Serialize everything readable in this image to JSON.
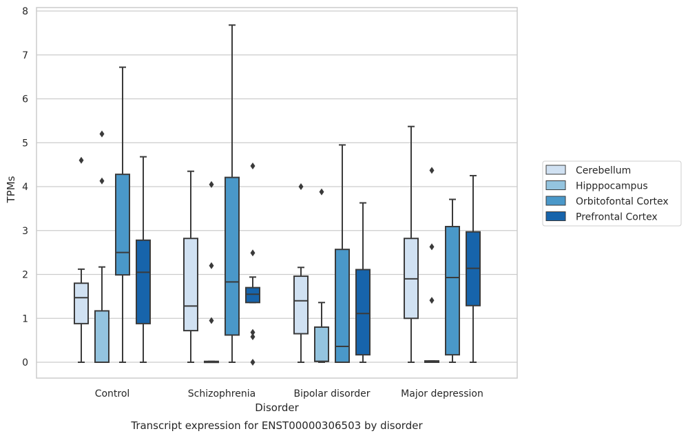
{
  "chart_data": {
    "type": "box",
    "title": "",
    "caption": "Transcript expression for ENST00000306503 by disorder",
    "xlabel": "Disorder",
    "ylabel": "TPMs",
    "ylim": [
      -0.35,
      8.05
    ],
    "yticks": [
      0,
      1,
      2,
      3,
      4,
      5,
      6,
      7,
      8
    ],
    "grid": "horizontal",
    "legend_position": "right",
    "categories": [
      "Control",
      "Schizophrenia",
      "Bipolar disorder",
      "Major depression"
    ],
    "series": [
      {
        "name": "Cerebellum",
        "color": "#d0e1f2",
        "boxes": [
          {
            "whisker_low": 0,
            "q1": 0.88,
            "median": 1.47,
            "q3": 1.8,
            "whisker_high": 2.12,
            "outliers": [
              4.6
            ]
          },
          {
            "whisker_low": 0,
            "q1": 0.72,
            "median": 1.28,
            "q3": 2.82,
            "whisker_high": 4.35,
            "outliers": []
          },
          {
            "whisker_low": 0,
            "q1": 0.65,
            "median": 1.4,
            "q3": 1.96,
            "whisker_high": 2.16,
            "outliers": [
              4.0
            ]
          },
          {
            "whisker_low": 0,
            "q1": 1.0,
            "median": 1.9,
            "q3": 2.82,
            "whisker_high": 5.37,
            "outliers": []
          }
        ]
      },
      {
        "name": "Hipppocampus",
        "color": "#94c4df",
        "boxes": [
          {
            "whisker_low": 0,
            "q1": 0.0,
            "median": 0.0,
            "q3": 1.17,
            "whisker_high": 2.17,
            "outliers": [
              4.13,
              5.2
            ]
          },
          {
            "whisker_low": 0,
            "q1": 0.0,
            "median": 0.0,
            "q3": 0.02,
            "whisker_high": 0.02,
            "outliers": [
              0.95,
              2.2,
              4.05
            ]
          },
          {
            "whisker_low": 0,
            "q1": 0.02,
            "median": 0.02,
            "q3": 0.8,
            "whisker_high": 1.36,
            "outliers": [
              3.88
            ]
          },
          {
            "whisker_low": 0,
            "q1": 0.0,
            "median": 0.0,
            "q3": 0.03,
            "whisker_high": 0.03,
            "outliers": [
              1.41,
              2.63,
              4.37
            ]
          }
        ]
      },
      {
        "name": "Orbitofontal Cortex",
        "color": "#4a98c9",
        "boxes": [
          {
            "whisker_low": 0,
            "q1": 1.99,
            "median": 2.5,
            "q3": 4.28,
            "whisker_high": 6.72,
            "outliers": []
          },
          {
            "whisker_low": 0,
            "q1": 0.62,
            "median": 1.83,
            "q3": 4.21,
            "whisker_high": 7.68,
            "outliers": []
          },
          {
            "whisker_low": 0,
            "q1": 0.0,
            "median": 0.36,
            "q3": 2.57,
            "whisker_high": 4.95,
            "outliers": []
          },
          {
            "whisker_low": 0,
            "q1": 0.17,
            "median": 1.93,
            "q3": 3.09,
            "whisker_high": 3.71,
            "outliers": []
          }
        ]
      },
      {
        "name": "Prefrontal Cortex",
        "color": "#1764ab",
        "boxes": [
          {
            "whisker_low": 0,
            "q1": 0.88,
            "median": 2.05,
            "q3": 2.78,
            "whisker_high": 4.68,
            "outliers": []
          },
          {
            "whisker_low": 1.36,
            "q1": 1.36,
            "median": 1.55,
            "q3": 1.7,
            "whisker_high": 1.94,
            "outliers": [
              0.0,
              0.58,
              0.68,
              2.49,
              4.47
            ]
          },
          {
            "whisker_low": 0,
            "q1": 0.17,
            "median": 1.11,
            "q3": 2.11,
            "whisker_high": 3.63,
            "outliers": []
          },
          {
            "whisker_low": 0,
            "q1": 1.29,
            "median": 2.14,
            "q3": 2.97,
            "whisker_high": 4.25,
            "outliers": []
          }
        ]
      }
    ]
  }
}
